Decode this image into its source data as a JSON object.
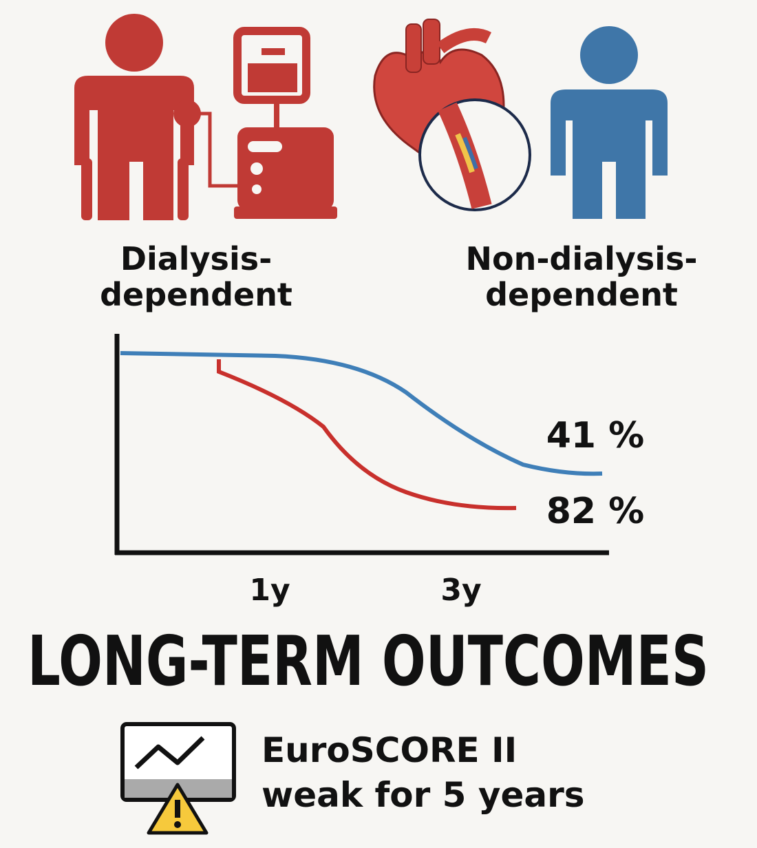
{
  "panels": [
    {
      "label_lines": [
        "Dialysis-",
        "dependent"
      ]
    },
    {
      "label_lines": [
        "Non-dialysis-",
        "dependent"
      ]
    }
  ],
  "chart": {
    "x_tick_labels": [
      "1y",
      "3y"
    ],
    "end_labels": [
      "41 %",
      "82 %"
    ]
  },
  "title": "LONG-TERM OUTCOMES",
  "note": {
    "lines": [
      "EuroSCORE II",
      "weak for 5 years"
    ]
  }
}
